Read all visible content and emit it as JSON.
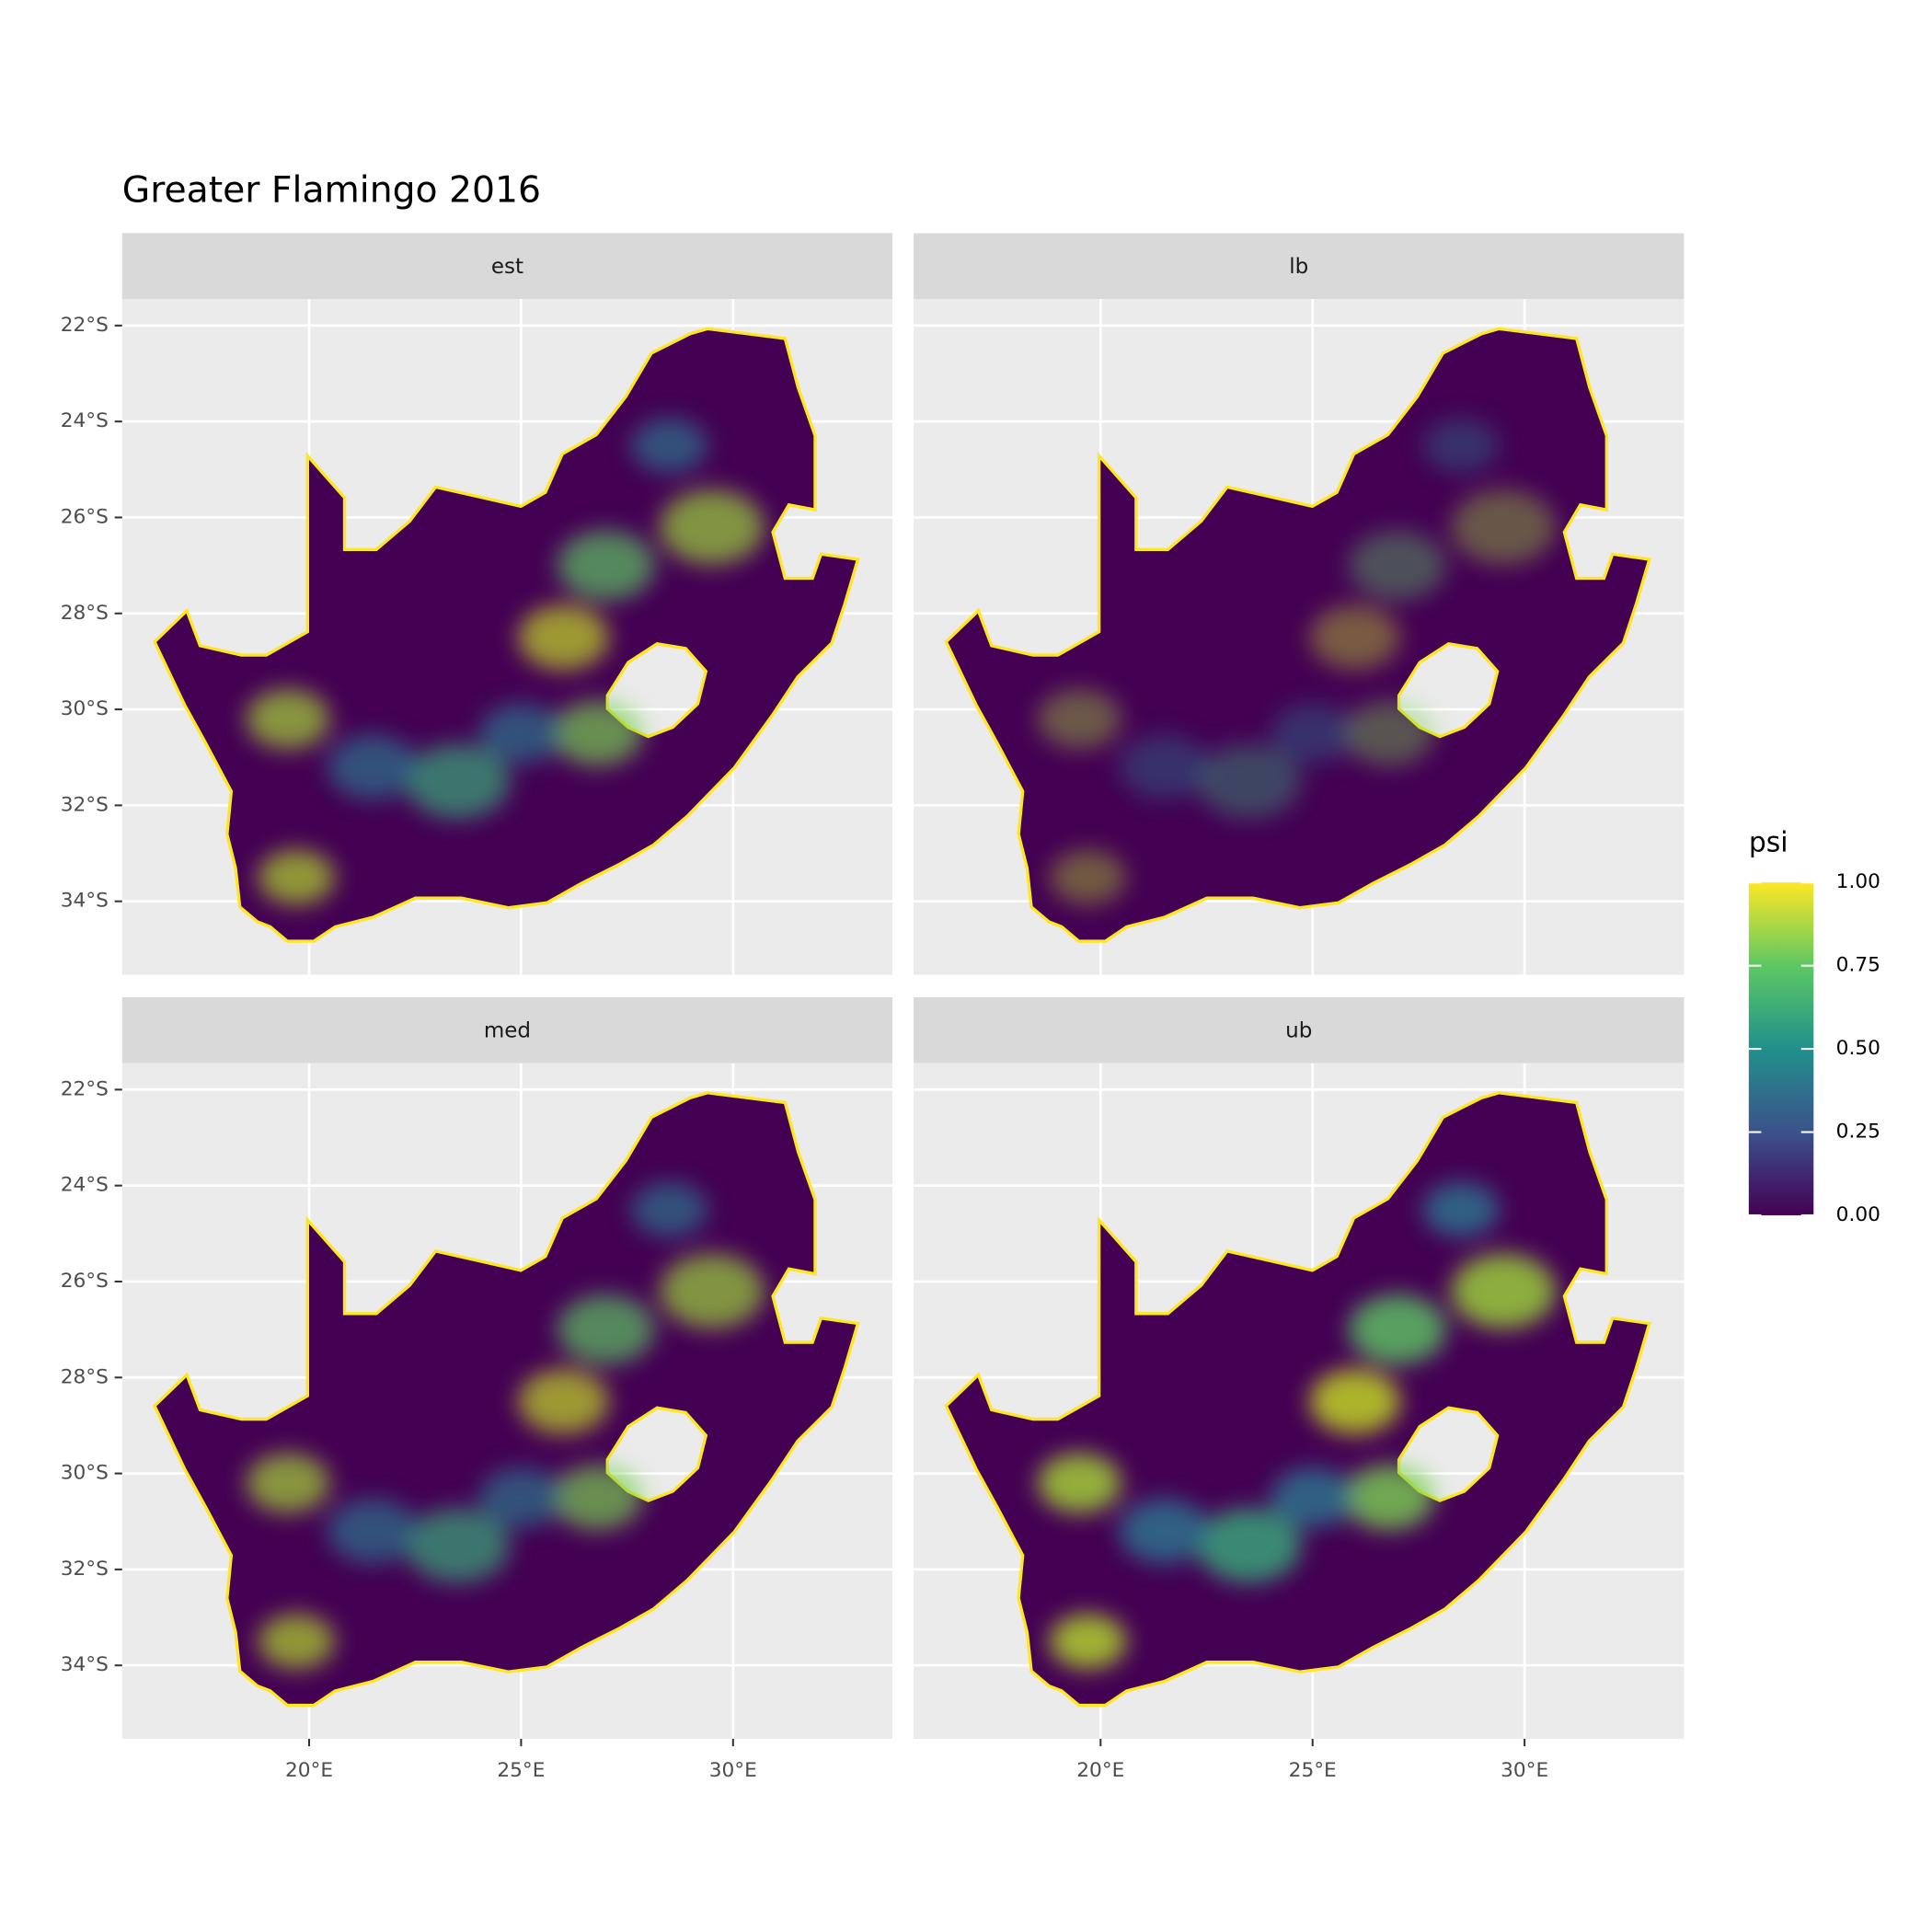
{
  "chart_data": {
    "type": "map",
    "title": "Greater Flamingo 2016",
    "panels": [
      "est",
      "lb",
      "med",
      "ub"
    ],
    "xlim": [
      15.59,
      33.76
    ],
    "ylim": [
      -35.53,
      -21.45
    ],
    "xticks": [
      {
        "value": 20,
        "label": "20°E"
      },
      {
        "value": 25,
        "label": "25°E"
      },
      {
        "value": 30,
        "label": "30°E"
      }
    ],
    "yticks": [
      {
        "value": -34,
        "label": "34°S"
      },
      {
        "value": -32,
        "label": "32°S"
      },
      {
        "value": -30,
        "label": "30°S"
      },
      {
        "value": -28,
        "label": "28°S"
      },
      {
        "value": -26,
        "label": "26°S"
      },
      {
        "value": -24,
        "label": "24°S"
      },
      {
        "value": -22,
        "label": "22°S"
      }
    ],
    "grid": true,
    "legend": {
      "title": "psi",
      "lim": [
        0,
        1
      ],
      "ticks": [
        {
          "value": 0,
          "label": "0.00"
        },
        {
          "value": 0.25,
          "label": "0.25"
        },
        {
          "value": 0.5,
          "label": "0.50"
        },
        {
          "value": 0.75,
          "label": "0.75"
        },
        {
          "value": 1,
          "label": "1.00"
        }
      ],
      "colors": [
        "#440154",
        "#3b528b",
        "#21908c",
        "#5dc863",
        "#fde725"
      ]
    }
  }
}
